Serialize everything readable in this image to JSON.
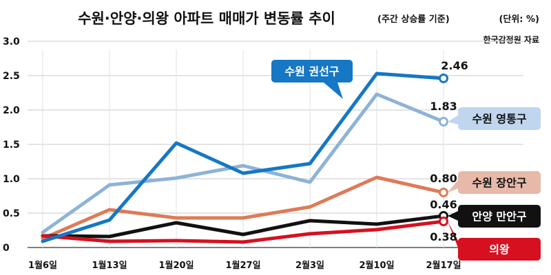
{
  "header": {
    "title": "수원·안양·의왕 아파트 매매가 변동률 추이",
    "subtitle": "(주간 상승률 기준)",
    "unit": "(단위: %)",
    "source": "한국감정원 자료"
  },
  "chart_data": {
    "type": "line",
    "x": [
      "1월6일",
      "1월13일",
      "1월20일",
      "1월27일",
      "2월3일",
      "2월10일",
      "2월17일"
    ],
    "ylim": [
      0,
      3.0
    ],
    "yticks": [
      "0",
      "0.5",
      "1.0",
      "1.5",
      "2.0",
      "2.5",
      "3.0"
    ],
    "grid": true,
    "series": [
      {
        "name": "수원 영통구",
        "color": "#8db3d6",
        "values": [
          0.22,
          0.91,
          1.01,
          1.19,
          0.95,
          2.23,
          1.83
        ],
        "end_label": "1.83",
        "label_bg": "#bfd6ee",
        "label_fg": "#111111"
      },
      {
        "name": "수원 장안구",
        "color": "#de7a58",
        "values": [
          0.13,
          0.55,
          0.43,
          0.43,
          0.59,
          1.02,
          0.8
        ],
        "end_label": "0.80",
        "label_bg": "#e7b9a9",
        "label_fg": "#111111"
      },
      {
        "name": "안양 만안구",
        "color": "#111111",
        "values": [
          0.17,
          0.16,
          0.36,
          0.19,
          0.39,
          0.34,
          0.46
        ],
        "end_label": "0.46",
        "label_bg": "#111111",
        "label_fg": "#ffffff"
      },
      {
        "name": "의왕",
        "color": "#d6101f",
        "values": [
          0.17,
          0.09,
          0.1,
          0.08,
          0.2,
          0.26,
          0.38
        ],
        "end_label": "0.38",
        "label_bg": "#d6101f",
        "label_fg": "#ffffff"
      },
      {
        "name": "수원 권선구",
        "color": "#1677c4",
        "values": [
          0.09,
          0.4,
          1.52,
          1.08,
          1.22,
          2.53,
          2.46
        ],
        "end_label": "2.46",
        "label_bg": "#1677c4",
        "label_fg": "#ffffff"
      }
    ]
  }
}
